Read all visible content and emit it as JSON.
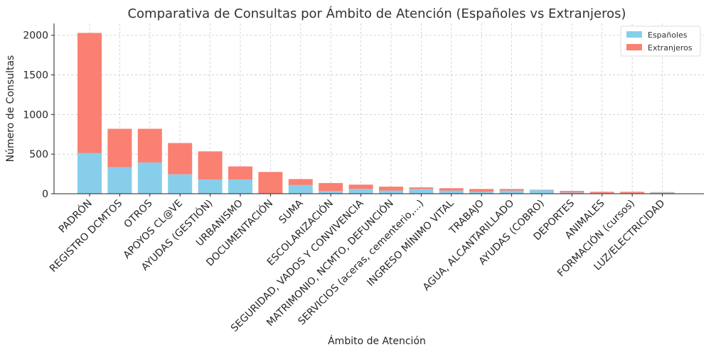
{
  "chart_data": {
    "type": "bar",
    "stacked": true,
    "title": "Comparativa de Consultas por Ámbito de Atención (Españoles vs Extranjeros)",
    "xlabel": "Ámbito de Atención",
    "ylabel": "Número de Consultas",
    "ylim": [
      0,
      2150
    ],
    "yticks": [
      0,
      500,
      1000,
      1500,
      2000
    ],
    "grid": true,
    "legend": "top-right",
    "categories": [
      "PADRÓN",
      "REGISTRO DCMTOS",
      "OTROS",
      "APOYOS CL@VE",
      "AYUDAS (GESTIÓN)",
      "URBANISMO",
      "DOCUMENTACIÓN",
      "SUMA",
      "ESCOLARIZACIÓN",
      "SEGURIDAD, VADOS Y CONVIVENCIA",
      "MATRIMONIO, NCMTO, DEFUNCIÓN",
      "SERVICIOS (aceras, cementerio,...)",
      "INGRESO MÍNIMO VITAL",
      "TRABAJO",
      "AGUA, ALCANTARILLADO",
      "AYUDAS (COBRO)",
      "DEPORTES",
      "ANIMALES",
      "FORMACIÓN (cursos)",
      "LUZ/ELECTRICIDAD"
    ],
    "series": [
      {
        "name": "Españoles",
        "color": "#87ceeb",
        "values": [
          515,
          335,
          395,
          245,
          180,
          180,
          5,
          110,
          35,
          60,
          40,
          60,
          40,
          25,
          40,
          45,
          15,
          10,
          10,
          15
        ]
      },
      {
        "name": "Extranjeros",
        "color": "#fa8072",
        "values": [
          1515,
          485,
          425,
          395,
          355,
          165,
          270,
          75,
          100,
          55,
          50,
          20,
          30,
          35,
          20,
          5,
          20,
          15,
          15,
          5
        ]
      }
    ]
  }
}
